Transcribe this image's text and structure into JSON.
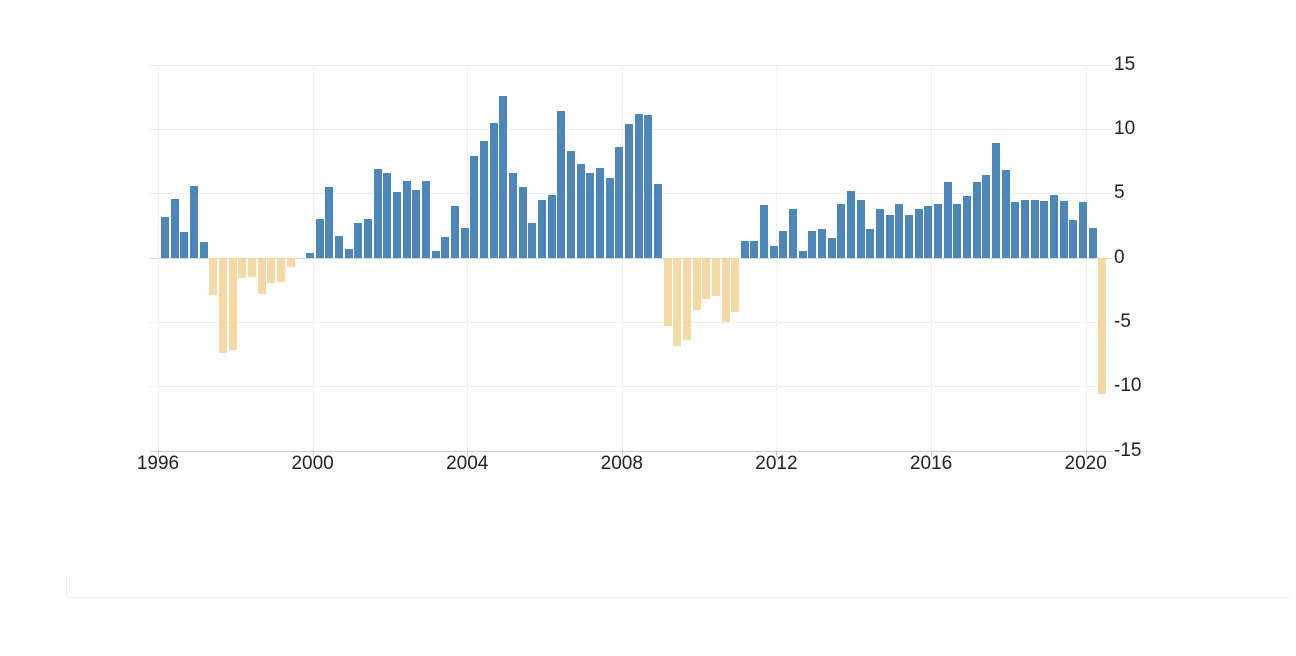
{
  "chart_data": {
    "type": "bar",
    "title": "",
    "frequency": "quarterly",
    "start_period": "1996-Q1",
    "end_period": "2020-Q2",
    "x_tick_labels": [
      "1996",
      "2000",
      "2004",
      "2008",
      "2012",
      "2016",
      "2020"
    ],
    "x_tick_indices": [
      0,
      16,
      32,
      48,
      64,
      80,
      96
    ],
    "y_tick_labels": [
      "15",
      "10",
      "5",
      "0",
      "-5",
      "-10",
      "-15"
    ],
    "y_tick_values": [
      15,
      10,
      5,
      0,
      -5,
      -10,
      -15
    ],
    "ylim": [
      -15,
      15
    ],
    "grid": true,
    "legend": false,
    "values": [
      3.2,
      4.6,
      2.0,
      5.6,
      1.2,
      -2.9,
      -7.4,
      -7.2,
      -1.6,
      -1.5,
      -2.8,
      -2.0,
      -1.9,
      -0.7,
      0.0,
      0.4,
      3.0,
      5.5,
      1.7,
      0.7,
      2.7,
      3.0,
      6.9,
      6.6,
      5.1,
      6.0,
      5.3,
      6.0,
      0.5,
      1.6,
      4.0,
      2.3,
      7.9,
      9.1,
      10.5,
      12.6,
      6.6,
      5.5,
      2.7,
      4.5,
      4.9,
      11.4,
      8.3,
      7.3,
      6.6,
      7.0,
      6.2,
      8.6,
      10.4,
      11.2,
      11.1,
      5.7,
      -5.3,
      -6.9,
      -6.4,
      -4.1,
      -3.2,
      -3.0,
      -5.0,
      -4.2,
      1.3,
      1.3,
      4.1,
      0.9,
      2.1,
      3.8,
      0.5,
      2.1,
      2.2,
      1.5,
      4.2,
      5.2,
      4.5,
      2.2,
      3.8,
      3.3,
      4.2,
      3.3,
      3.8,
      4.0,
      4.2,
      5.9,
      4.2,
      4.8,
      5.9,
      6.4,
      8.9,
      6.8,
      4.3,
      4.5,
      4.5,
      4.4,
      4.9,
      4.4,
      2.9,
      4.3,
      2.3,
      -10.6
    ],
    "colors": {
      "positive": "#4D86B8",
      "negative": "#F2D9A6"
    }
  }
}
